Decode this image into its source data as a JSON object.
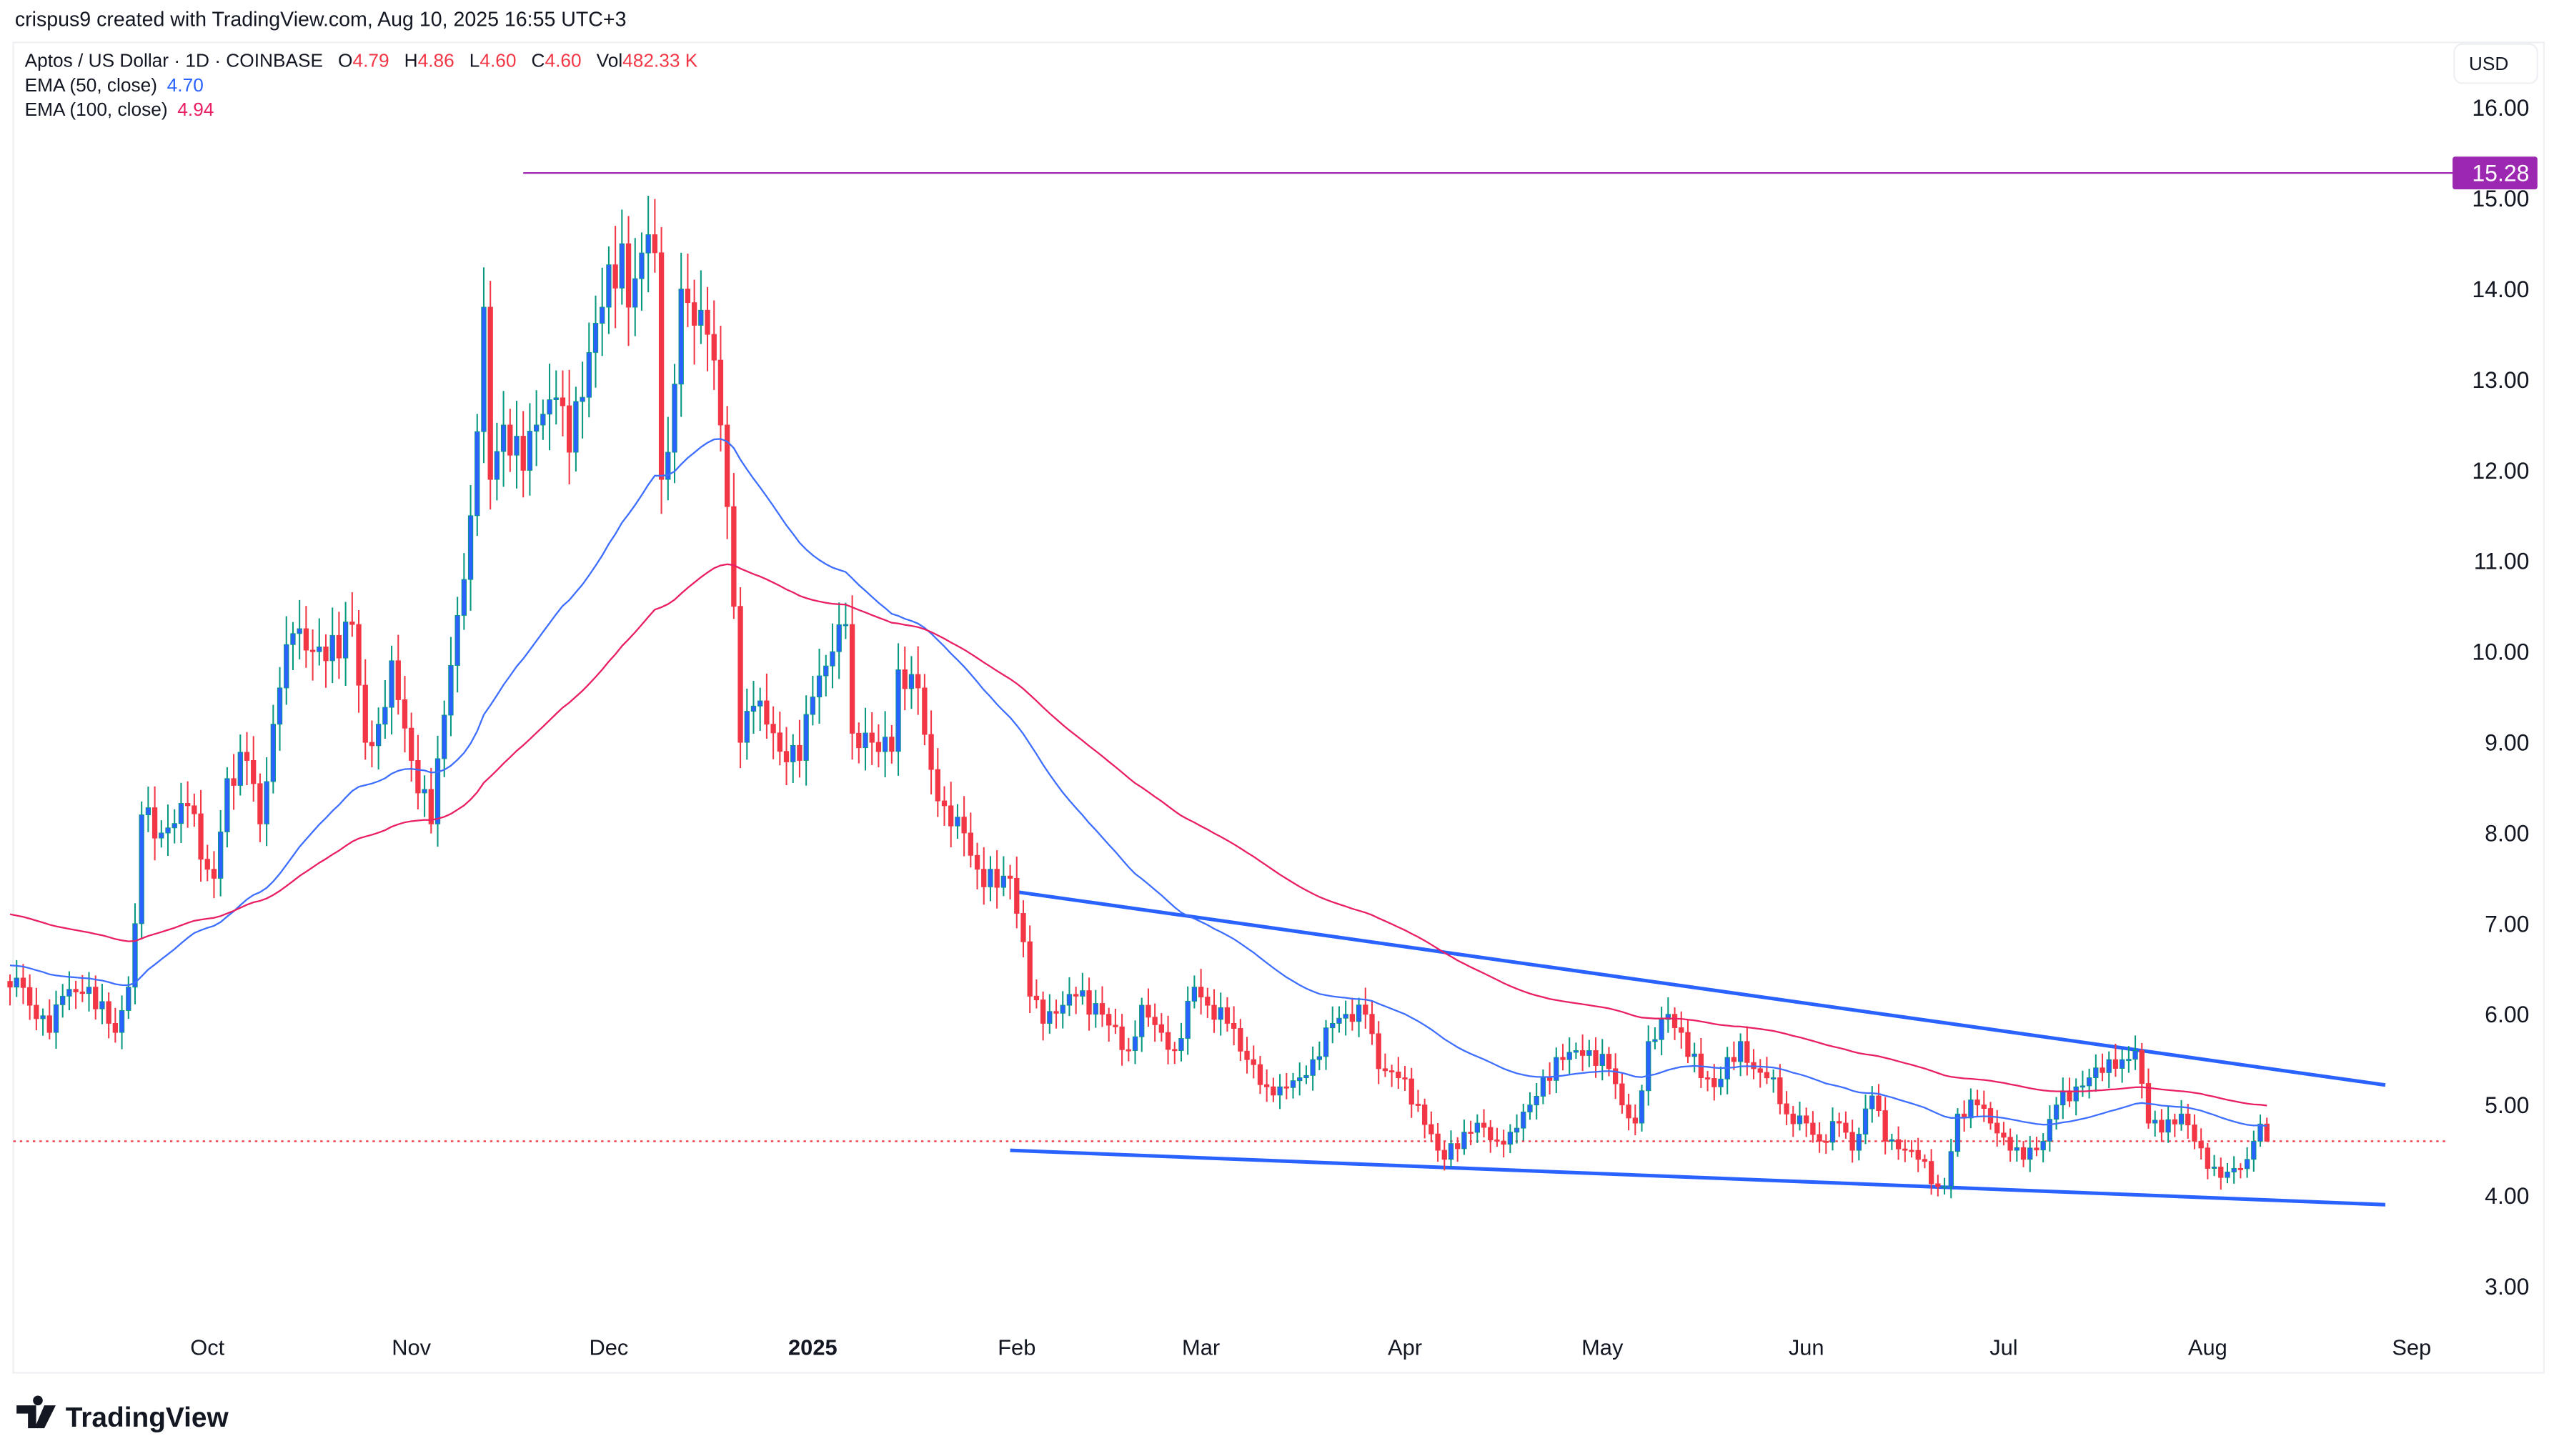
{
  "header": {
    "credit": "crispus9 created with TradingView.com, Aug 10, 2025 16:55 UTC+3"
  },
  "legend": {
    "symbol": "Aptos / US Dollar · 1D · COINBASE",
    "o_label": "O",
    "o_value": "4.79",
    "h_label": "H",
    "h_value": "4.86",
    "l_label": "L",
    "l_value": "4.60",
    "c_label": "C",
    "c_value": "4.60",
    "vol_label": "Vol",
    "vol_value": "482.33 K",
    "ema50_label": "EMA (50, close)",
    "ema50_value": "4.70",
    "ema100_label": "EMA (100, close)",
    "ema100_value": "4.94"
  },
  "currency_button": "USD",
  "logo_text": "TradingView",
  "colors": {
    "up_body": "#2962ff",
    "up_wick": "#089981",
    "down": "#f23645",
    "ema50": "#3d6eff",
    "ema100": "#e91e63",
    "hline": "#9c27b0",
    "trendline": "#2962ff",
    "last_price": "#f23645"
  },
  "chart_data": {
    "type": "candlestick",
    "title": "Aptos / US Dollar · 1D · COINBASE",
    "start_date": "2024-09-01",
    "ylim": [
      2.5,
      16.6
    ],
    "y_ticks": [
      "3.00",
      "4.00",
      "5.00",
      "6.00",
      "7.00",
      "8.00",
      "9.00",
      "10.00",
      "11.00",
      "12.00",
      "13.00",
      "14.00",
      "15.00",
      "16.00"
    ],
    "x_ticks": [
      {
        "label": "Oct",
        "day": 30,
        "bold": false
      },
      {
        "label": "Nov",
        "day": 61,
        "bold": false
      },
      {
        "label": "Dec",
        "day": 91,
        "bold": false
      },
      {
        "label": "2025",
        "day": 122,
        "bold": true
      },
      {
        "label": "Feb",
        "day": 153,
        "bold": false
      },
      {
        "label": "Mar",
        "day": 181,
        "bold": false
      },
      {
        "label": "Apr",
        "day": 212,
        "bold": false
      },
      {
        "label": "May",
        "day": 242,
        "bold": false
      },
      {
        "label": "Jun",
        "day": 273,
        "bold": false
      },
      {
        "label": "Jul",
        "day": 303,
        "bold": false
      },
      {
        "label": "Aug",
        "day": 334,
        "bold": false
      },
      {
        "label": "Sep",
        "day": 365,
        "bold": false
      }
    ],
    "x_range_days": [
      -1,
      376
    ],
    "close_anchors": [
      [
        0,
        6.3
      ],
      [
        1,
        6.4
      ],
      [
        3,
        6.1
      ],
      [
        6,
        5.8
      ],
      [
        8,
        6.2
      ],
      [
        12,
        6.3
      ],
      [
        15,
        5.9
      ],
      [
        16,
        5.8
      ],
      [
        18,
        6.3
      ],
      [
        19,
        7.0
      ],
      [
        20,
        8.2
      ],
      [
        23,
        8.0
      ],
      [
        27,
        8.3
      ],
      [
        30,
        7.6
      ],
      [
        31,
        7.5
      ],
      [
        33,
        8.6
      ],
      [
        36,
        8.8
      ],
      [
        38,
        8.1
      ],
      [
        41,
        9.6
      ],
      [
        43,
        10.2
      ],
      [
        46,
        10.0
      ],
      [
        48,
        9.9
      ],
      [
        52,
        10.3
      ],
      [
        54,
        9.0
      ],
      [
        56,
        9.2
      ],
      [
        58,
        9.9
      ],
      [
        61,
        8.8
      ],
      [
        64,
        8.1
      ],
      [
        66,
        9.3
      ],
      [
        68,
        10.4
      ],
      [
        70,
        11.5
      ],
      [
        72,
        13.8
      ],
      [
        73,
        11.9
      ],
      [
        75,
        12.5
      ],
      [
        78,
        12.0
      ],
      [
        80,
        12.5
      ],
      [
        83,
        12.8
      ],
      [
        85,
        12.2
      ],
      [
        88,
        13.3
      ],
      [
        90,
        13.8
      ],
      [
        93,
        14.5
      ],
      [
        94,
        13.8
      ],
      [
        97,
        14.6
      ],
      [
        98,
        14.4
      ],
      [
        99,
        11.9
      ],
      [
        100,
        12.2
      ],
      [
        102,
        14.0
      ],
      [
        104,
        13.6
      ],
      [
        106,
        13.5
      ],
      [
        108,
        12.5
      ],
      [
        109,
        11.6
      ],
      [
        110,
        10.5
      ],
      [
        111,
        9.0
      ],
      [
        113,
        9.4
      ],
      [
        115,
        9.2
      ],
      [
        117,
        8.9
      ],
      [
        120,
        8.8
      ],
      [
        122,
        9.5
      ],
      [
        125,
        10.0
      ],
      [
        127,
        10.3
      ],
      [
        128,
        9.1
      ],
      [
        131,
        9.0
      ],
      [
        134,
        8.9
      ],
      [
        135,
        9.8
      ],
      [
        138,
        9.6
      ],
      [
        140,
        8.7
      ],
      [
        142,
        8.3
      ],
      [
        145,
        8.0
      ],
      [
        147,
        7.6
      ],
      [
        150,
        7.4
      ],
      [
        152,
        7.5
      ],
      [
        154,
        6.8
      ],
      [
        155,
        6.2
      ],
      [
        157,
        5.9
      ],
      [
        160,
        6.1
      ],
      [
        162,
        6.2
      ],
      [
        166,
        6.0
      ],
      [
        170,
        5.6
      ],
      [
        172,
        6.1
      ],
      [
        175,
        5.8
      ],
      [
        177,
        5.6
      ],
      [
        180,
        6.3
      ],
      [
        182,
        6.1
      ],
      [
        185,
        5.9
      ],
      [
        188,
        5.5
      ],
      [
        191,
        5.2
      ],
      [
        193,
        5.2
      ],
      [
        196,
        5.3
      ],
      [
        198,
        5.5
      ],
      [
        201,
        5.9
      ],
      [
        203,
        6.0
      ],
      [
        206,
        6.0
      ],
      [
        208,
        5.4
      ],
      [
        211,
        5.3
      ],
      [
        214,
        5.0
      ],
      [
        217,
        4.5
      ],
      [
        218,
        4.4
      ],
      [
        221,
        4.7
      ],
      [
        223,
        4.8
      ],
      [
        226,
        4.6
      ],
      [
        228,
        4.7
      ],
      [
        231,
        5.0
      ],
      [
        233,
        5.3
      ],
      [
        236,
        5.5
      ],
      [
        238,
        5.6
      ],
      [
        240,
        5.6
      ],
      [
        243,
        5.4
      ],
      [
        245,
        5.0
      ],
      [
        247,
        4.8
      ],
      [
        249,
        5.7
      ],
      [
        252,
        6.0
      ],
      [
        254,
        5.8
      ],
      [
        257,
        5.3
      ],
      [
        259,
        5.2
      ],
      [
        263,
        5.7
      ],
      [
        265,
        5.4
      ],
      [
        268,
        5.3
      ],
      [
        270,
        4.9
      ],
      [
        273,
        4.8
      ],
      [
        275,
        4.6
      ],
      [
        278,
        4.8
      ],
      [
        280,
        4.5
      ],
      [
        283,
        5.1
      ],
      [
        285,
        4.6
      ],
      [
        288,
        4.5
      ],
      [
        290,
        4.4
      ],
      [
        293,
        4.1
      ],
      [
        294,
        4.1
      ],
      [
        296,
        4.9
      ],
      [
        299,
        5.0
      ],
      [
        301,
        4.8
      ],
      [
        304,
        4.5
      ],
      [
        306,
        4.4
      ],
      [
        309,
        4.6
      ],
      [
        311,
        5.0
      ],
      [
        314,
        5.2
      ],
      [
        316,
        5.3
      ],
      [
        319,
        5.5
      ],
      [
        321,
        5.5
      ],
      [
        323,
        5.6
      ],
      [
        325,
        4.8
      ],
      [
        327,
        4.7
      ],
      [
        330,
        4.9
      ],
      [
        332,
        4.6
      ],
      [
        334,
        4.3
      ],
      [
        336,
        4.2
      ],
      [
        338,
        4.3
      ],
      [
        340,
        4.4
      ],
      [
        341,
        4.6
      ],
      [
        342,
        4.79
      ],
      [
        343,
        4.6
      ]
    ],
    "last_candle": {
      "open": 4.79,
      "high": 4.86,
      "low": 4.6,
      "close": 4.6
    },
    "ema_seed": {
      "ema50": 6.55,
      "ema100": 7.12
    },
    "series": [
      {
        "name": "EMA (50, close)",
        "last": 4.7
      },
      {
        "name": "EMA (100, close)",
        "last": 4.94
      }
    ],
    "horizontal_line": {
      "price": 15.28,
      "label": "15.28",
      "from_day": 78
    },
    "last_price": 4.6,
    "trendlines": [
      {
        "name": "upper",
        "from": [
          153,
          7.35
        ],
        "to": [
          361,
          5.22
        ]
      },
      {
        "name": "lower",
        "from": [
          152,
          4.5
        ],
        "to": [
          361,
          3.9
        ]
      }
    ]
  }
}
